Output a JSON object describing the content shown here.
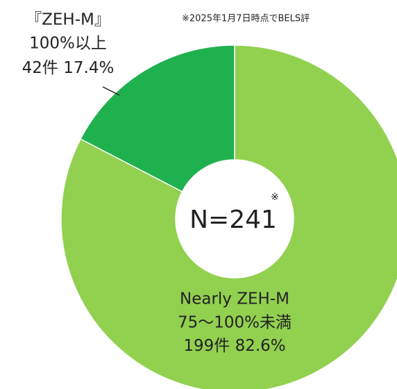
{
  "chart_data": {
    "type": "donut",
    "note": "※2025年1月7日時点でBELS評",
    "center_text": "N=241",
    "center_mark": "※",
    "categories": [
      [
        "『ZEH-M』",
        "100%以上"
      ],
      [
        "Nearly ZEH-M",
        "75～100%未満"
      ]
    ],
    "counts": [
      42,
      199
    ],
    "count_labels": [
      "42件",
      "199件"
    ],
    "values": [
      17.4,
      82.6
    ],
    "value_labels": [
      "17.4%",
      "82.6%"
    ],
    "colors": [
      "#1fb14e",
      "#92d050"
    ]
  }
}
